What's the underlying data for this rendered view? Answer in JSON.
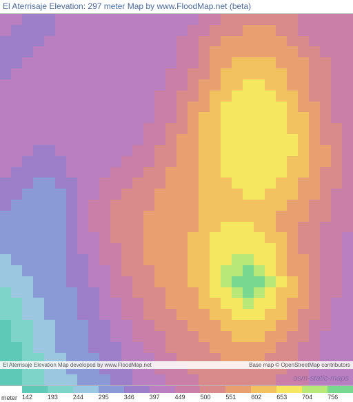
{
  "title": "El Aterrisaje Elevation: 297 meter Map by www.FloodMap.net (beta)",
  "watermark": "osm-static-maps",
  "footer": {
    "left": "El Aterrisaje Elevation Map developed by www.FloodMap.net",
    "right": "Base map © OpenStreetMap contributors"
  },
  "legend": {
    "unit_label": "meter",
    "ticks": [
      "142",
      "193",
      "244",
      "295",
      "346",
      "397",
      "449",
      "500",
      "551",
      "602",
      "653",
      "704",
      "756"
    ],
    "colors": [
      "#5ec9b7",
      "#7fd4c9",
      "#9bc8e0",
      "#8a9ad6",
      "#9d7fc9",
      "#b97fc0",
      "#c97fa8",
      "#d98a8a",
      "#e8a070",
      "#f2c260",
      "#f5e860",
      "#b8e878",
      "#78d890"
    ]
  },
  "map": {
    "type": "heatmap",
    "grid_cols": 32,
    "grid_rows": 34,
    "background_color": "#b97fc0",
    "elevation_palette": {
      "142": "#5ec9b7",
      "193": "#7fd4c9",
      "244": "#9bc8e0",
      "295": "#8a9ad6",
      "346": "#9d7fc9",
      "397": "#b97fc0",
      "449": "#c97fa8",
      "500": "#d98a8a",
      "551": "#e8a070",
      "602": "#f2c260",
      "653": "#f5e860",
      "704": "#b8e878",
      "756": "#78d890"
    },
    "grid_data": [
      [
        5,
        5,
        4,
        4,
        4,
        5,
        5,
        5,
        5,
        5,
        5,
        5,
        5,
        5,
        5,
        5,
        5,
        5,
        6,
        6,
        7,
        7,
        7,
        7,
        7,
        7,
        7,
        6,
        6,
        6,
        6,
        6
      ],
      [
        5,
        4,
        4,
        4,
        4,
        5,
        5,
        5,
        5,
        5,
        5,
        5,
        5,
        5,
        5,
        5,
        5,
        6,
        6,
        7,
        7,
        7,
        8,
        8,
        8,
        7,
        7,
        6,
        6,
        6,
        6,
        6
      ],
      [
        4,
        4,
        4,
        4,
        5,
        5,
        5,
        5,
        5,
        5,
        5,
        5,
        5,
        5,
        5,
        5,
        6,
        6,
        7,
        7,
        8,
        8,
        8,
        8,
        8,
        8,
        7,
        7,
        6,
        6,
        6,
        6
      ],
      [
        4,
        4,
        4,
        5,
        5,
        5,
        5,
        5,
        5,
        5,
        5,
        5,
        5,
        5,
        5,
        5,
        6,
        6,
        7,
        8,
        8,
        8,
        8,
        8,
        8,
        8,
        8,
        7,
        7,
        6,
        6,
        6
      ],
      [
        4,
        4,
        5,
        5,
        5,
        5,
        5,
        5,
        5,
        5,
        5,
        5,
        5,
        5,
        5,
        5,
        6,
        6,
        7,
        8,
        8,
        9,
        9,
        9,
        9,
        8,
        8,
        8,
        7,
        7,
        6,
        6
      ],
      [
        4,
        5,
        5,
        5,
        5,
        5,
        5,
        5,
        5,
        5,
        5,
        5,
        5,
        5,
        5,
        6,
        6,
        7,
        7,
        8,
        9,
        9,
        9,
        9,
        9,
        9,
        8,
        8,
        7,
        7,
        6,
        6
      ],
      [
        5,
        5,
        5,
        5,
        5,
        5,
        5,
        5,
        5,
        5,
        5,
        5,
        5,
        5,
        5,
        6,
        6,
        7,
        8,
        8,
        9,
        9,
        10,
        10,
        9,
        9,
        8,
        8,
        7,
        7,
        6,
        6
      ],
      [
        5,
        5,
        5,
        5,
        5,
        5,
        5,
        5,
        5,
        5,
        5,
        5,
        5,
        5,
        6,
        6,
        7,
        7,
        8,
        9,
        9,
        10,
        10,
        10,
        10,
        9,
        9,
        8,
        7,
        7,
        6,
        6
      ],
      [
        5,
        5,
        5,
        5,
        5,
        5,
        5,
        5,
        5,
        5,
        5,
        5,
        5,
        5,
        6,
        6,
        7,
        8,
        8,
        9,
        10,
        10,
        10,
        10,
        10,
        10,
        9,
        8,
        8,
        7,
        6,
        6
      ],
      [
        5,
        5,
        5,
        5,
        5,
        5,
        5,
        5,
        5,
        5,
        5,
        5,
        5,
        5,
        6,
        6,
        7,
        8,
        9,
        9,
        10,
        10,
        10,
        10,
        10,
        10,
        9,
        9,
        8,
        7,
        6,
        6
      ],
      [
        5,
        5,
        5,
        5,
        5,
        5,
        5,
        5,
        5,
        5,
        5,
        5,
        5,
        6,
        6,
        7,
        7,
        8,
        9,
        9,
        10,
        10,
        10,
        10,
        10,
        10,
        9,
        9,
        8,
        7,
        7,
        6
      ],
      [
        5,
        5,
        5,
        5,
        5,
        5,
        5,
        5,
        5,
        5,
        5,
        5,
        5,
        6,
        6,
        7,
        8,
        8,
        9,
        9,
        10,
        10,
        10,
        10,
        10,
        10,
        10,
        9,
        8,
        7,
        7,
        6
      ],
      [
        5,
        5,
        5,
        4,
        4,
        5,
        5,
        5,
        5,
        5,
        5,
        5,
        6,
        6,
        7,
        7,
        8,
        8,
        9,
        9,
        10,
        10,
        10,
        10,
        10,
        10,
        10,
        9,
        8,
        8,
        7,
        6
      ],
      [
        5,
        5,
        4,
        4,
        4,
        4,
        5,
        5,
        5,
        5,
        5,
        6,
        6,
        6,
        7,
        7,
        8,
        8,
        9,
        9,
        10,
        10,
        10,
        10,
        10,
        10,
        9,
        9,
        8,
        8,
        7,
        6
      ],
      [
        5,
        4,
        4,
        4,
        4,
        4,
        5,
        5,
        5,
        5,
        6,
        6,
        6,
        7,
        7,
        8,
        8,
        8,
        9,
        9,
        10,
        10,
        10,
        10,
        10,
        10,
        9,
        9,
        8,
        7,
        7,
        6
      ],
      [
        4,
        4,
        4,
        3,
        3,
        4,
        4,
        5,
        5,
        6,
        6,
        6,
        7,
        7,
        7,
        8,
        8,
        8,
        9,
        9,
        9,
        10,
        10,
        10,
        10,
        9,
        9,
        8,
        8,
        7,
        7,
        6
      ],
      [
        4,
        4,
        3,
        3,
        3,
        3,
        4,
        5,
        5,
        6,
        6,
        7,
        7,
        7,
        8,
        8,
        8,
        8,
        9,
        9,
        9,
        9,
        10,
        10,
        9,
        9,
        9,
        8,
        8,
        7,
        6,
        6
      ],
      [
        4,
        3,
        3,
        3,
        3,
        3,
        4,
        5,
        6,
        6,
        7,
        7,
        7,
        7,
        8,
        8,
        8,
        8,
        9,
        9,
        9,
        9,
        9,
        9,
        9,
        9,
        8,
        8,
        7,
        7,
        6,
        6
      ],
      [
        3,
        3,
        3,
        3,
        3,
        3,
        4,
        5,
        6,
        6,
        7,
        7,
        7,
        8,
        8,
        8,
        8,
        8,
        9,
        9,
        9,
        9,
        9,
        9,
        9,
        8,
        8,
        8,
        7,
        7,
        6,
        6
      ],
      [
        3,
        3,
        3,
        3,
        3,
        3,
        4,
        5,
        6,
        6,
        7,
        7,
        7,
        8,
        8,
        8,
        8,
        8,
        9,
        9,
        10,
        10,
        10,
        9,
        9,
        8,
        8,
        7,
        7,
        6,
        6,
        6
      ],
      [
        3,
        3,
        3,
        3,
        3,
        3,
        4,
        5,
        5,
        6,
        7,
        7,
        7,
        8,
        8,
        8,
        8,
        9,
        9,
        10,
        10,
        10,
        10,
        10,
        9,
        9,
        8,
        7,
        7,
        6,
        6,
        5
      ],
      [
        3,
        3,
        3,
        3,
        3,
        3,
        4,
        5,
        5,
        6,
        6,
        7,
        7,
        8,
        8,
        8,
        8,
        9,
        9,
        10,
        10,
        10,
        10,
        10,
        10,
        9,
        8,
        7,
        7,
        6,
        6,
        5
      ],
      [
        2,
        3,
        3,
        3,
        3,
        3,
        4,
        4,
        5,
        6,
        6,
        7,
        7,
        8,
        8,
        8,
        8,
        9,
        9,
        10,
        10,
        11,
        11,
        10,
        10,
        9,
        8,
        8,
        7,
        6,
        6,
        5
      ],
      [
        2,
        2,
        3,
        3,
        3,
        3,
        4,
        4,
        5,
        5,
        6,
        7,
        7,
        7,
        8,
        8,
        8,
        9,
        9,
        10,
        11,
        11,
        12,
        11,
        10,
        9,
        8,
        8,
        7,
        6,
        6,
        5
      ],
      [
        2,
        2,
        2,
        3,
        3,
        3,
        4,
        4,
        5,
        5,
        6,
        6,
        7,
        7,
        8,
        8,
        8,
        9,
        9,
        10,
        11,
        12,
        12,
        12,
        11,
        10,
        9,
        8,
        7,
        6,
        6,
        5
      ],
      [
        1,
        2,
        2,
        3,
        3,
        3,
        3,
        4,
        4,
        5,
        6,
        6,
        7,
        7,
        7,
        8,
        8,
        8,
        9,
        10,
        10,
        11,
        12,
        11,
        10,
        9,
        9,
        8,
        7,
        6,
        6,
        5
      ],
      [
        1,
        1,
        2,
        2,
        3,
        3,
        3,
        4,
        4,
        5,
        5,
        6,
        6,
        7,
        7,
        8,
        8,
        8,
        9,
        9,
        10,
        10,
        11,
        10,
        10,
        9,
        8,
        8,
        7,
        6,
        5,
        5
      ],
      [
        1,
        1,
        2,
        2,
        3,
        3,
        3,
        4,
        4,
        5,
        5,
        6,
        6,
        7,
        7,
        7,
        8,
        8,
        8,
        9,
        9,
        10,
        10,
        10,
        9,
        9,
        8,
        7,
        7,
        6,
        5,
        5
      ],
      [
        0,
        1,
        1,
        2,
        2,
        3,
        3,
        3,
        4,
        4,
        5,
        5,
        6,
        6,
        7,
        7,
        7,
        8,
        8,
        8,
        9,
        9,
        9,
        9,
        9,
        8,
        8,
        7,
        6,
        6,
        5,
        5
      ],
      [
        0,
        1,
        1,
        2,
        2,
        3,
        3,
        3,
        4,
        4,
        5,
        5,
        6,
        6,
        6,
        7,
        7,
        7,
        8,
        8,
        8,
        9,
        9,
        9,
        8,
        8,
        7,
        7,
        6,
        5,
        5,
        5
      ],
      [
        0,
        0,
        1,
        2,
        2,
        3,
        3,
        3,
        4,
        4,
        4,
        5,
        5,
        6,
        6,
        7,
        7,
        7,
        7,
        8,
        8,
        8,
        8,
        8,
        8,
        7,
        7,
        6,
        6,
        5,
        5,
        5
      ],
      [
        0,
        0,
        1,
        1,
        2,
        2,
        3,
        3,
        3,
        4,
        4,
        5,
        5,
        5,
        6,
        6,
        7,
        7,
        7,
        7,
        8,
        8,
        8,
        8,
        7,
        7,
        7,
        6,
        6,
        5,
        5,
        5
      ],
      [
        0,
        0,
        1,
        1,
        2,
        2,
        3,
        3,
        3,
        4,
        4,
        4,
        5,
        5,
        6,
        6,
        6,
        7,
        7,
        7,
        7,
        7,
        7,
        7,
        7,
        7,
        6,
        6,
        5,
        5,
        5,
        5
      ],
      [
        0,
        0,
        1,
        1,
        2,
        2,
        2,
        3,
        3,
        3,
        4,
        4,
        5,
        5,
        5,
        6,
        6,
        6,
        7,
        7,
        7,
        7,
        7,
        7,
        7,
        6,
        6,
        6,
        5,
        5,
        5,
        5
      ]
    ]
  }
}
